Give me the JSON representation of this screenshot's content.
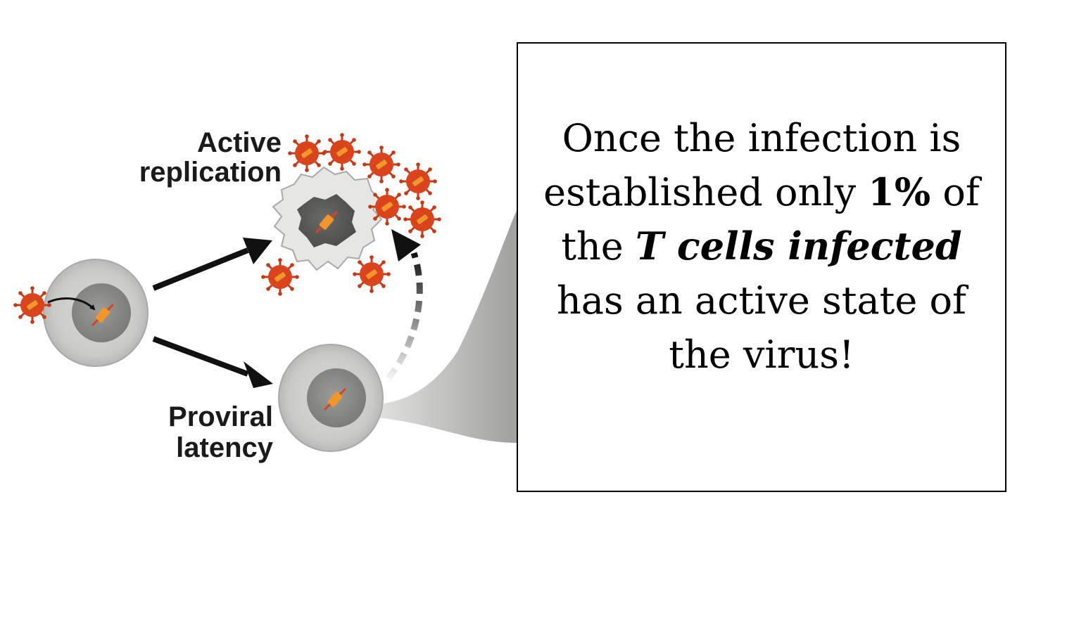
{
  "labels": {
    "active_line1": "Active",
    "active_line2": "replication",
    "latent_line1": "Proviral",
    "latent_line2": "latency"
  },
  "callout": {
    "line1": "Once the infection is",
    "line2_a": "established only ",
    "line2_bold": "1%",
    "line2_b": " of",
    "line3_a": "the ",
    "line3_bold_italic": "T cells infected",
    "line4": "has an active state of",
    "line5": "the virus!"
  },
  "colors": {
    "virus": "#d9441c",
    "virus_spike": "#c23a18",
    "provirus": "#f0962a",
    "cell_outer": "#cdcdcb",
    "cell_nucleus": "#8a8a88",
    "lysed_cell": "#e6e6e4",
    "lysed_nucleus": "#5e5e5c",
    "arrow": "#111111"
  }
}
